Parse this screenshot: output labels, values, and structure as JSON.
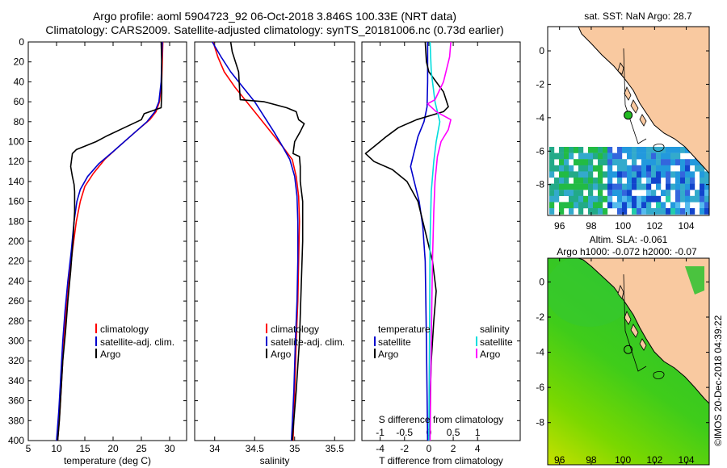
{
  "title": {
    "line1": "Argo profile: aoml 5904723_92 06-Oct-2018 3.846S 100.33E (NRT data)",
    "line2": "Climatology: CARS2009. Satellite-adjusted climatology: synTS_20181006.nc (0.73d earlier)"
  },
  "depth_ticks": [
    "0",
    "20",
    "40",
    "60",
    "80",
    "100",
    "120",
    "140",
    "160",
    "180",
    "200",
    "220",
    "240",
    "260",
    "280",
    "300",
    "320",
    "340",
    "360",
    "380",
    "400"
  ],
  "colors": {
    "climatology": "#ff0000",
    "satellite": "#0000cc",
    "argo": "#000000",
    "argo_salinity_diff": "#ff00ff",
    "satellite_salinity_diff": "#00dddd",
    "land": "#f9c9a0"
  },
  "chart_data": [
    {
      "type": "line",
      "name": "temperature-panel",
      "xlabel": "temperature (deg C)",
      "xlim": [
        5,
        33
      ],
      "ylim": [
        400,
        0
      ],
      "x_ticks": [
        "5",
        "10",
        "15",
        "20",
        "25",
        "30"
      ],
      "legend": {
        "location": "lower-right",
        "entries": [
          "climatology",
          "satellite-adj. clim.",
          "Argo"
        ]
      },
      "series": [
        {
          "name": "climatology",
          "color": "#ff0000",
          "points": [
            [
              28.8,
              0
            ],
            [
              28.6,
              40
            ],
            [
              28.2,
              60
            ],
            [
              27.6,
              70
            ],
            [
              26.5,
              78
            ],
            [
              24,
              90
            ],
            [
              21,
              105
            ],
            [
              18.5,
              118
            ],
            [
              16.5,
              132
            ],
            [
              15,
              145
            ],
            [
              14.2,
              160
            ],
            [
              13.5,
              180
            ],
            [
              12.8,
              210
            ],
            [
              12.2,
              240
            ],
            [
              11.7,
              270
            ],
            [
              11.3,
              300
            ],
            [
              11,
              330
            ],
            [
              10.6,
              370
            ],
            [
              10.2,
              400
            ]
          ]
        },
        {
          "name": "satellite-adj. clim.",
          "color": "#0000cc",
          "points": [
            [
              28.7,
              0
            ],
            [
              28.5,
              40
            ],
            [
              28.1,
              60
            ],
            [
              27.4,
              70
            ],
            [
              26,
              80
            ],
            [
              23,
              95
            ],
            [
              20,
              110
            ],
            [
              17.5,
              122
            ],
            [
              15.5,
              135
            ],
            [
              14.2,
              148
            ],
            [
              13.6,
              160
            ],
            [
              13.1,
              180
            ],
            [
              12.6,
              210
            ],
            [
              12,
              240
            ],
            [
              11.5,
              270
            ],
            [
              11.1,
              300
            ],
            [
              10.8,
              330
            ],
            [
              10.4,
              370
            ],
            [
              10,
              400
            ]
          ]
        },
        {
          "name": "Argo",
          "color": "#000000",
          "points": [
            [
              28.5,
              0
            ],
            [
              28.6,
              20
            ],
            [
              28.6,
              50
            ],
            [
              28.5,
              66
            ],
            [
              25.5,
              72
            ],
            [
              25,
              78
            ],
            [
              22,
              86
            ],
            [
              19,
              94
            ],
            [
              17,
              100
            ],
            [
              14.8,
              105
            ],
            [
              13.5,
              108
            ],
            [
              12.8,
              112
            ],
            [
              12.5,
              125
            ],
            [
              12.8,
              135
            ],
            [
              13.1,
              143
            ],
            [
              13.2,
              150
            ],
            [
              13.2,
              170
            ],
            [
              12.9,
              200
            ],
            [
              12.5,
              230
            ],
            [
              12,
              260
            ],
            [
              11.6,
              290
            ],
            [
              11.1,
              320
            ],
            [
              10.8,
              350
            ],
            [
              10.5,
              380
            ],
            [
              10.2,
              400
            ]
          ]
        }
      ]
    },
    {
      "type": "line",
      "name": "salinity-panel",
      "xlabel": "salinity",
      "xlim": [
        33.75,
        35.75
      ],
      "ylim": [
        400,
        0
      ],
      "x_ticks": [
        "34",
        "34.5",
        "35",
        "35.5"
      ],
      "legend": {
        "location": "lower-right",
        "entries": [
          "climatology",
          "satellite-adj. clim.",
          "Argo"
        ]
      },
      "series": [
        {
          "name": "climatology",
          "color": "#ff0000",
          "points": [
            [
              33.98,
              0
            ],
            [
              34.04,
              15
            ],
            [
              34.12,
              30
            ],
            [
              34.25,
              45
            ],
            [
              34.4,
              60
            ],
            [
              34.55,
              75
            ],
            [
              34.7,
              90
            ],
            [
              34.85,
              105
            ],
            [
              34.97,
              118
            ],
            [
              35.02,
              135
            ],
            [
              35.05,
              155
            ],
            [
              35.06,
              180
            ],
            [
              35.05,
              220
            ],
            [
              35.04,
              260
            ],
            [
              35.02,
              300
            ],
            [
              35,
              350
            ],
            [
              34.98,
              400
            ]
          ]
        },
        {
          "name": "satellite-adj. clim.",
          "color": "#0000cc",
          "points": [
            [
              33.97,
              0
            ],
            [
              34.08,
              15
            ],
            [
              34.2,
              30
            ],
            [
              34.35,
              45
            ],
            [
              34.5,
              60
            ],
            [
              34.62,
              75
            ],
            [
              34.74,
              90
            ],
            [
              34.85,
              105
            ],
            [
              34.94,
              118
            ],
            [
              35,
              135
            ],
            [
              35.03,
              155
            ],
            [
              35.04,
              180
            ],
            [
              35.04,
              220
            ],
            [
              35.03,
              260
            ],
            [
              35.01,
              300
            ],
            [
              34.99,
              350
            ],
            [
              34.96,
              400
            ]
          ]
        },
        {
          "name": "Argo",
          "color": "#000000",
          "points": [
            [
              34.2,
              0
            ],
            [
              34.22,
              10
            ],
            [
              34.3,
              30
            ],
            [
              34.31,
              45
            ],
            [
              34.32,
              58
            ],
            [
              34.62,
              60
            ],
            [
              34.9,
              66
            ],
            [
              35.02,
              70
            ],
            [
              35.05,
              78
            ],
            [
              35.12,
              82
            ],
            [
              35.07,
              90
            ],
            [
              35,
              100
            ],
            [
              34.98,
              112
            ],
            [
              35.06,
              115
            ],
            [
              35.07,
              125
            ],
            [
              35.07,
              140
            ],
            [
              35.1,
              160
            ],
            [
              35.1,
              200
            ],
            [
              35.08,
              250
            ],
            [
              35.06,
              300
            ],
            [
              35.02,
              350
            ],
            [
              34.97,
              400
            ]
          ]
        }
      ]
    },
    {
      "type": "line",
      "name": "difference-panel",
      "xlabel": "T difference from climatology",
      "xlabel_top": "S difference from climatology",
      "xlim": [
        -5.5,
        7.5
      ],
      "ylim": [
        400,
        0
      ],
      "x_ticks": [
        "-4",
        "-2",
        "0",
        "2",
        "4"
      ],
      "x_ticks_top": [
        "-1",
        "-0.5",
        "0",
        "0.5",
        "1"
      ],
      "legend_temperature": {
        "title": "temperature",
        "entries": [
          "satellite",
          "Argo"
        ]
      },
      "legend_salinity": {
        "title": "salinity",
        "entries": [
          "satellite",
          "Argo"
        ]
      },
      "series": [
        {
          "name": "temperature satellite",
          "color": "#0000cc",
          "points": [
            [
              -0.1,
              0
            ],
            [
              -0.1,
              40
            ],
            [
              -0.15,
              65
            ],
            [
              -0.4,
              80
            ],
            [
              -0.9,
              95
            ],
            [
              -1.2,
              110
            ],
            [
              -1.5,
              125
            ],
            [
              -1.2,
              140
            ],
            [
              -0.8,
              160
            ],
            [
              -0.5,
              185
            ],
            [
              -0.3,
              220
            ],
            [
              -0.2,
              300
            ],
            [
              -0.1,
              400
            ]
          ]
        },
        {
          "name": "temperature Argo",
          "color": "#000000",
          "points": [
            [
              -0.3,
              0
            ],
            [
              -0.2,
              20
            ],
            [
              0,
              30
            ],
            [
              1.2,
              50
            ],
            [
              1.6,
              65
            ],
            [
              1.2,
              70
            ],
            [
              -1,
              78
            ],
            [
              -2.5,
              86
            ],
            [
              -3.5,
              95
            ],
            [
              -4.2,
              102
            ],
            [
              -5.2,
              112
            ],
            [
              -4.5,
              120
            ],
            [
              -3,
              128
            ],
            [
              -1.8,
              140
            ],
            [
              -0.9,
              160
            ],
            [
              -0.3,
              190
            ],
            [
              0.3,
              220
            ],
            [
              0.6,
              250
            ],
            [
              0.4,
              280
            ],
            [
              0.2,
              320
            ],
            [
              0,
              400
            ]
          ]
        },
        {
          "name": "salinity satellite",
          "color": "#00dddd",
          "points": [
            [
              0.1,
              0
            ],
            [
              0.2,
              30
            ],
            [
              0.5,
              60
            ],
            [
              0.9,
              80
            ],
            [
              0.6,
              100
            ],
            [
              0.4,
              120
            ],
            [
              0.2,
              150
            ],
            [
              0.1,
              200
            ],
            [
              0.05,
              300
            ],
            [
              0,
              400
            ]
          ]
        },
        {
          "name": "salinity Argo",
          "color": "#ff00ff",
          "points": [
            [
              1.8,
              0
            ],
            [
              1.7,
              15
            ],
            [
              1.2,
              40
            ],
            [
              0.5,
              58
            ],
            [
              -0.1,
              62
            ],
            [
              0.6,
              70
            ],
            [
              1.8,
              78
            ],
            [
              1.6,
              88
            ],
            [
              1,
              100
            ],
            [
              0.7,
              115
            ],
            [
              0.5,
              140
            ],
            [
              0.4,
              170
            ],
            [
              0.3,
              220
            ],
            [
              0.2,
              300
            ],
            [
              0.1,
              400
            ]
          ]
        }
      ]
    },
    {
      "type": "heatmap",
      "name": "sst-map",
      "title": "sat. SST: NaN Argo: 28.7",
      "x_ticks": [
        "96",
        "98",
        "100",
        "102",
        "104"
      ],
      "y_ticks": [
        "0",
        "-2",
        "-4",
        "-6",
        "-8"
      ],
      "argo_marker": [
        100.33,
        -3.846
      ]
    },
    {
      "type": "heatmap",
      "name": "sla-map",
      "title_line1": "Altim. SLA: -0.061",
      "title_line2": "Argo h1000: -0.072 h2000: -0.07",
      "x_ticks": [
        "96",
        "98",
        "100",
        "102",
        "104"
      ],
      "y_ticks": [
        "0",
        "-2",
        "-4",
        "-6",
        "-8"
      ],
      "argo_marker": [
        100.33,
        -3.846
      ]
    }
  ],
  "credit": "©IMOS 20-Dec-2018 04:39:22"
}
